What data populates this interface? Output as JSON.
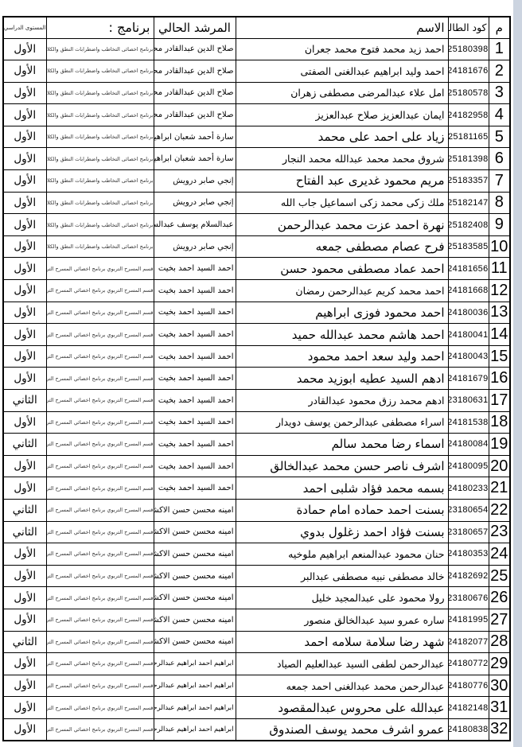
{
  "page": {
    "background": "#ffffff",
    "edge_color": "#ccd4e0"
  },
  "table": {
    "headers": {
      "num": "م",
      "code": "كود الطالب",
      "name": "الاسم",
      "advisor": "المرشد الحالي",
      "program": "برنامج :",
      "level": "المستوى الدراسي"
    },
    "programs": {
      "speech": "برنامج اخصائى التخاطب واضطرابات النطق والكلام بيا",
      "speech_alt": "برنامج اخصائى التخاطب واضطرابات النطق والكلام العبر",
      "theater": "قسم المسرح التربوي برنامج اخصائي المسرح التربوي"
    },
    "levels": {
      "first": "الأول",
      "second": "الثاني"
    },
    "rows": [
      {
        "num": "1",
        "code": "25180398",
        "name": "احمد زيد محمد فتوح محمد جعران",
        "advisor": "صلاح الدين عبدالقادر محمد",
        "program": "speech",
        "level": "الأول"
      },
      {
        "num": "2",
        "code": "24181676",
        "name": "احمد وليد ابراهيم عبدالغنى الصفتى",
        "advisor": "صلاح الدين عبدالقادر محمد",
        "program": "speech",
        "level": "الأول"
      },
      {
        "num": "3",
        "code": "25180578",
        "name": "امل علاء عبدالمرضى مصطفى زهران",
        "advisor": "صلاح الدين عبدالقادر محمد",
        "program": "speech",
        "level": "الأول"
      },
      {
        "num": "4",
        "code": "24182958",
        "name": "ايمان عبدالعزيز صلاح عبدالعزيز",
        "advisor": "صلاح الدين عبدالقادر محمد",
        "program": "speech",
        "level": "الأول"
      },
      {
        "num": "5",
        "code": "25181165",
        "name": "زياد على احمد على محمد",
        "advisor": "سارة أحمد شعبان ابراهيم",
        "program": "speech",
        "level": "الأول"
      },
      {
        "num": "6",
        "code": "25181398",
        "name": "شروق محمد محمد عبدالله محمد النجار",
        "advisor": "سارة أحمد شعبان ابراهيم",
        "program": "speech",
        "level": "الأول"
      },
      {
        "num": "7",
        "code": "25183357",
        "name": "مريم محمود غديرى عبد الفتاح",
        "advisor": "إنجي صابر درويش",
        "program": "speech",
        "level": "الأول"
      },
      {
        "num": "8",
        "code": "25182147",
        "name": "ملك زكى محمد زكى اسماعيل جاب الله",
        "advisor": "إنجي صابر درويش",
        "program": "speech",
        "level": "الأول"
      },
      {
        "num": "9",
        "code": "25182408",
        "name": "نهرة احمد عزت محمد عبدالرحمن",
        "advisor": "عبدالسلام يوسف عبدالسلام",
        "program": "speech",
        "level": "الأول"
      },
      {
        "num": "10",
        "code": "25183585",
        "name": "فرح عصام مصطفى جمعه",
        "advisor": "إنجي صابر درويش",
        "program": "speech_alt",
        "level": "الأول"
      },
      {
        "num": "11",
        "code": "24181656",
        "name": "احمد عماد مصطفى محمود حسن",
        "advisor": "احمد السيد احمد بخيت",
        "program": "theater",
        "level": "الأول"
      },
      {
        "num": "12",
        "code": "24181668",
        "name": "احمد محمد كريم عبدالرحمن رمضان",
        "advisor": "احمد السيد احمد بخيت",
        "program": "theater",
        "level": "الأول"
      },
      {
        "num": "13",
        "code": "24180036",
        "name": "احمد محمود فوزى ابراهيم",
        "advisor": "احمد السيد احمد بخيت",
        "program": "theater",
        "level": "الأول"
      },
      {
        "num": "14",
        "code": "24180041",
        "name": "احمد هاشم محمد عبدالله حميد",
        "advisor": "احمد السيد احمد بخيت",
        "program": "theater",
        "level": "الأول"
      },
      {
        "num": "15",
        "code": "24180043",
        "name": "احمد وليد سعد احمد محمود",
        "advisor": "احمد السيد احمد بخيت",
        "program": "theater",
        "level": "الأول"
      },
      {
        "num": "16",
        "code": "24181679",
        "name": "ادهم السيد عطيه ابوزيد محمد",
        "advisor": "احمد السيد احمد بخيت",
        "program": "theater",
        "level": "الأول"
      },
      {
        "num": "17",
        "code": "23180631",
        "name": "ادهم محمد رزق محمود عبدالقادر",
        "advisor": "احمد السيد احمد بخيت",
        "program": "theater",
        "level": "الثاني"
      },
      {
        "num": "18",
        "code": "24181538",
        "name": "اسراء مصطفى عبدالرحمن يوسف دويدار",
        "advisor": "احمد السيد احمد بخيت",
        "program": "theater",
        "level": "الأول"
      },
      {
        "num": "19",
        "code": "24180084",
        "name": "اسماء رضا محمد سالم",
        "advisor": "احمد السيد احمد بخيت",
        "program": "theater",
        "level": "الثاني"
      },
      {
        "num": "20",
        "code": "24180095",
        "name": "اشرف ناصر حسن محمد عبدالخالق",
        "advisor": "احمد السيد احمد بخيت",
        "program": "theater",
        "level": "الأول"
      },
      {
        "num": "21",
        "code": "24180233",
        "name": "بسمه محمد فؤاد شلبى احمد",
        "advisor": "احمد السيد احمد بخيت",
        "program": "theater",
        "level": "الأول"
      },
      {
        "num": "22",
        "code": "23180654",
        "name": "بسنت احمد حماده امام حمادة",
        "advisor": "امينه محسن حسن الاكشر",
        "program": "theater",
        "level": "الثاني"
      },
      {
        "num": "23",
        "code": "23180657",
        "name": "بسنت فؤاد احمد زغلول بدوي",
        "advisor": "امينه محسن حسن الاكشر",
        "program": "theater",
        "level": "الثاني"
      },
      {
        "num": "24",
        "code": "24180353",
        "name": "حنان محمود عبدالمنعم ابراهيم ملوخيه",
        "advisor": "امينه محسن حسن الاكشر",
        "program": "theater",
        "level": "الأول"
      },
      {
        "num": "25",
        "code": "24182692",
        "name": "خالد مصطفى نبيه مصطفى عبدالبر",
        "advisor": "امينه محسن حسن الاكشر",
        "program": "theater",
        "level": "الأول"
      },
      {
        "num": "26",
        "code": "23180676",
        "name": "رولا محمود على عبدالمجيد خليل",
        "advisor": "امينه محسن حسن الاكشر",
        "program": "theater",
        "level": "الأول"
      },
      {
        "num": "27",
        "code": "24181995",
        "name": "ساره عمرو سيد عبدالخالق منصور",
        "advisor": "امينه محسن حسن الاكشر",
        "program": "theater",
        "level": "الأول"
      },
      {
        "num": "28",
        "code": "24182077",
        "name": "شهد رضا سلامة سلامه احمد",
        "advisor": "امينه محسن حسن الاكشر",
        "program": "theater",
        "level": "الثاني"
      },
      {
        "num": "29",
        "code": "24180772",
        "name": "عبدالرحمن لطفى السيد عبدالعليم الصياد",
        "advisor": "ابراهيم احمد ابراهيم عبدالرحمن",
        "program": "theater",
        "level": "الأول"
      },
      {
        "num": "30",
        "code": "24180776",
        "name": "عبدالرحمن محمد عبدالغنى احمد جمعه",
        "advisor": "ابراهيم احمد ابراهيم عبدالرحمن",
        "program": "theater",
        "level": "الأول"
      },
      {
        "num": "31",
        "code": "24182148",
        "name": "عبدالله على محروس عبدالمقصود",
        "advisor": "ابراهيم احمد ابراهيم عبدالرحمن",
        "program": "theater",
        "level": "الأول"
      },
      {
        "num": "32",
        "code": "24180838",
        "name": "عمرو اشرف محمد يوسف الصندوق",
        "advisor": "ابراهيم احمد ابراهيم عبدالرحمن",
        "program": "theater",
        "level": "الأول"
      }
    ]
  }
}
